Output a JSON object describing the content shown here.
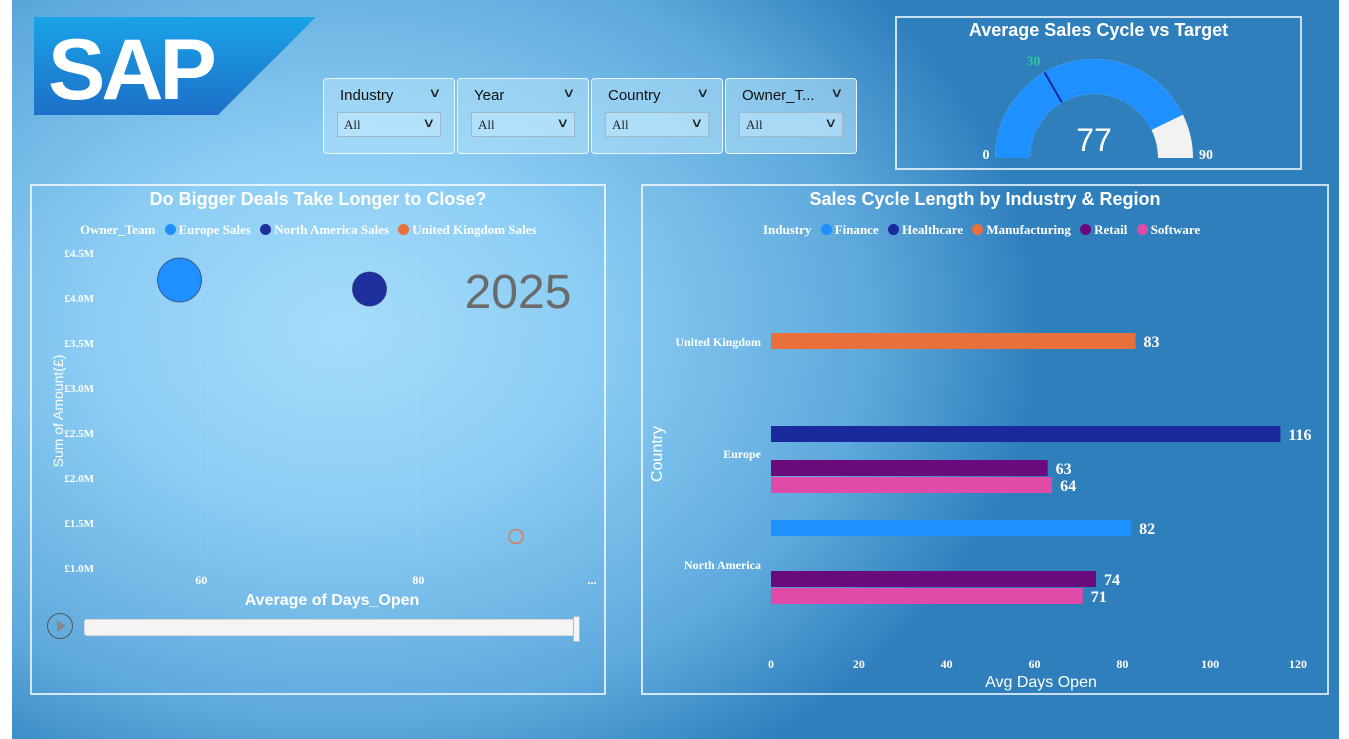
{
  "logo": {
    "text": "SAP"
  },
  "slicers": [
    {
      "label": "Industry",
      "value": "All"
    },
    {
      "label": "Year",
      "value": "All"
    },
    {
      "label": "Country",
      "value": "All"
    },
    {
      "label": "Owner_T...",
      "value": "All"
    }
  ],
  "gauge": {
    "title": "Average Sales Cycle vs Target",
    "value_label": "77",
    "min_label": "0",
    "max_label": "90",
    "target_label": "30",
    "value": 77,
    "min": 0,
    "max": 90,
    "target": 30
  },
  "colors": {
    "europe_sales": "#1e90ff",
    "north_america_sales": "#1f2f9e",
    "united_kingdom_sales": "#e8703a",
    "finance": "#1e90ff",
    "healthcare": "#1a2a9c",
    "manufacturing": "#e8703a",
    "retail": "#6b0a7d",
    "software": "#e04aa8",
    "target": "#2ec4a0"
  },
  "scatter": {
    "title": "Do Bigger Deals Take Longer to Close?",
    "legend_title": "Owner_Team",
    "legend": [
      "Europe Sales",
      "North America Sales",
      "United Kingdom Sales"
    ],
    "year_label": "2025",
    "more_label": "..."
  },
  "barchart": {
    "title": "Sales Cycle Length by Industry & Region",
    "legend_title": "Industry",
    "legend": [
      "Finance",
      "Healthcare",
      "Manufacturing",
      "Retail",
      "Software"
    ]
  },
  "chart_data": [
    {
      "type": "scatter",
      "title": "Do Bigger Deals Take Longer to Close?",
      "xlabel": "Average of Days_Open",
      "ylabel": "Sum of Amount(£)",
      "xlim": [
        55,
        96
      ],
      "ylim": [
        1.0,
        4.5
      ],
      "x_ticks": [
        "60",
        "80"
      ],
      "y_ticks": [
        "£1.0M",
        "£1.5M",
        "£2.0M",
        "£2.5M",
        "£3.0M",
        "£3.5M",
        "£4.0M",
        "£4.5M"
      ],
      "y_tick_values": [
        1.0,
        1.5,
        2.0,
        2.5,
        3.0,
        3.5,
        4.0,
        4.5
      ],
      "animation_year": "2025",
      "series": [
        {
          "name": "Europe Sales",
          "points": [
            {
              "x": 58,
              "y": 4.2,
              "size": 1.0
            }
          ]
        },
        {
          "name": "North America Sales",
          "points": [
            {
              "x": 75.5,
              "y": 4.1,
              "size": 0.6
            }
          ]
        },
        {
          "name": "United Kingdom Sales",
          "points": [
            {
              "x": 89,
              "y": 1.35,
              "size": 0.1
            }
          ]
        }
      ]
    },
    {
      "type": "bar",
      "orientation": "horizontal",
      "title": "Sales Cycle Length by Industry & Region",
      "xlabel": "Avg Days Open",
      "ylabel": "Country",
      "xlim": [
        0,
        120
      ],
      "x_ticks": [
        "0",
        "20",
        "40",
        "60",
        "80",
        "100",
        "120"
      ],
      "x_tick_values": [
        0,
        20,
        40,
        60,
        80,
        100,
        120
      ],
      "categories": [
        "United Kingdom",
        "Europe",
        "North America"
      ],
      "groups": [
        {
          "category": "United Kingdom",
          "bars": [
            {
              "industry": "Manufacturing",
              "value": 83,
              "label": "83"
            }
          ]
        },
        {
          "category": "Europe",
          "bars": [
            {
              "industry": "Healthcare",
              "value": 116,
              "label": "116"
            },
            {
              "industry": "Retail",
              "value": 63,
              "label": "63"
            },
            {
              "industry": "Software",
              "value": 64,
              "label": "64"
            }
          ]
        },
        {
          "category": "North America",
          "bars": [
            {
              "industry": "Finance",
              "value": 82,
              "label": "82"
            },
            {
              "industry": "Retail",
              "value": 74,
              "label": "74"
            },
            {
              "industry": "Software",
              "value": 71,
              "label": "71"
            }
          ]
        }
      ]
    }
  ]
}
